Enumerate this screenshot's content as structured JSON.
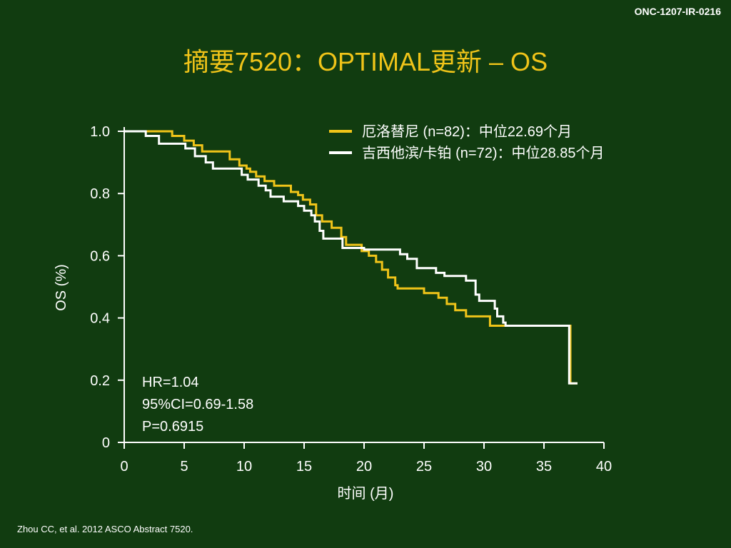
{
  "slide": {
    "code": "ONC-1207-IR-0216",
    "title": "摘要7520：OPTIMAL更新 – OS",
    "reference": "Zhou CC, et al. 2012 ASCO Abstract 7520."
  },
  "chart_data": {
    "type": "line",
    "xlabel": "时间 (月)",
    "ylabel": "OS (%)",
    "xlim": [
      0,
      40
    ],
    "ylim": [
      0,
      1.0
    ],
    "x_ticks": [
      "0",
      "5",
      "10",
      "15",
      "20",
      "25",
      "30",
      "35",
      "40"
    ],
    "y_ticks": [
      "0",
      "0.2",
      "0.4",
      "0.6",
      "0.8",
      "1.0"
    ],
    "legend_placement": "top-right",
    "series": [
      {
        "name": "厄洛替尼 (n=82)：中位22.69个月",
        "color": "#f0c419",
        "points": [
          [
            0,
            1.0
          ],
          [
            4,
            1.0
          ],
          [
            4,
            0.985
          ],
          [
            5,
            0.985
          ],
          [
            5,
            0.97
          ],
          [
            5.8,
            0.97
          ],
          [
            5.8,
            0.955
          ],
          [
            6.5,
            0.955
          ],
          [
            6.5,
            0.935
          ],
          [
            8.8,
            0.935
          ],
          [
            8.8,
            0.91
          ],
          [
            9.6,
            0.91
          ],
          [
            9.6,
            0.89
          ],
          [
            10.2,
            0.89
          ],
          [
            10.2,
            0.88
          ],
          [
            10.5,
            0.88
          ],
          [
            10.5,
            0.87
          ],
          [
            11,
            0.87
          ],
          [
            11,
            0.855
          ],
          [
            11.7,
            0.855
          ],
          [
            11.7,
            0.84
          ],
          [
            12.5,
            0.84
          ],
          [
            12.5,
            0.825
          ],
          [
            13.9,
            0.825
          ],
          [
            13.9,
            0.805
          ],
          [
            14.5,
            0.805
          ],
          [
            14.5,
            0.795
          ],
          [
            14.9,
            0.795
          ],
          [
            14.9,
            0.78
          ],
          [
            15.5,
            0.78
          ],
          [
            15.5,
            0.765
          ],
          [
            16,
            0.765
          ],
          [
            16,
            0.73
          ],
          [
            16.5,
            0.73
          ],
          [
            16.5,
            0.71
          ],
          [
            17.3,
            0.71
          ],
          [
            17.3,
            0.69
          ],
          [
            18.1,
            0.69
          ],
          [
            18.1,
            0.66
          ],
          [
            18.5,
            0.66
          ],
          [
            18.5,
            0.635
          ],
          [
            19.8,
            0.635
          ],
          [
            19.8,
            0.615
          ],
          [
            20.4,
            0.615
          ],
          [
            20.4,
            0.6
          ],
          [
            21,
            0.6
          ],
          [
            21,
            0.58
          ],
          [
            21.5,
            0.58
          ],
          [
            21.5,
            0.555
          ],
          [
            22,
            0.555
          ],
          [
            22,
            0.53
          ],
          [
            22.6,
            0.53
          ],
          [
            22.6,
            0.505
          ],
          [
            22.8,
            0.505
          ],
          [
            22.8,
            0.495
          ],
          [
            25,
            0.495
          ],
          [
            25,
            0.48
          ],
          [
            26.2,
            0.48
          ],
          [
            26.2,
            0.465
          ],
          [
            26.9,
            0.465
          ],
          [
            26.9,
            0.445
          ],
          [
            27.6,
            0.445
          ],
          [
            27.6,
            0.425
          ],
          [
            28.5,
            0.425
          ],
          [
            28.5,
            0.405
          ],
          [
            30.5,
            0.405
          ],
          [
            30.5,
            0.375
          ],
          [
            37.2,
            0.375
          ],
          [
            37.2,
            0.19
          ],
          [
            37.8,
            0.19
          ]
        ]
      },
      {
        "name": "吉西他滨/卡铂 (n=72)：中位28.85个月",
        "color": "#ffffff",
        "points": [
          [
            0,
            1.0
          ],
          [
            1.8,
            1.0
          ],
          [
            1.8,
            0.985
          ],
          [
            2.9,
            0.985
          ],
          [
            2.9,
            0.96
          ],
          [
            5.1,
            0.96
          ],
          [
            5.1,
            0.945
          ],
          [
            5.9,
            0.945
          ],
          [
            5.9,
            0.92
          ],
          [
            6.8,
            0.92
          ],
          [
            6.8,
            0.9
          ],
          [
            7.4,
            0.9
          ],
          [
            7.4,
            0.88
          ],
          [
            9.8,
            0.88
          ],
          [
            9.8,
            0.86
          ],
          [
            10.3,
            0.86
          ],
          [
            10.3,
            0.845
          ],
          [
            11.2,
            0.845
          ],
          [
            11.2,
            0.825
          ],
          [
            11.8,
            0.825
          ],
          [
            11.8,
            0.81
          ],
          [
            12.2,
            0.81
          ],
          [
            12.2,
            0.79
          ],
          [
            13.3,
            0.79
          ],
          [
            13.3,
            0.775
          ],
          [
            14.5,
            0.775
          ],
          [
            14.5,
            0.76
          ],
          [
            15,
            0.76
          ],
          [
            15,
            0.745
          ],
          [
            15.6,
            0.745
          ],
          [
            15.6,
            0.73
          ],
          [
            15.9,
            0.73
          ],
          [
            15.9,
            0.71
          ],
          [
            16.3,
            0.71
          ],
          [
            16.3,
            0.68
          ],
          [
            16.6,
            0.68
          ],
          [
            16.6,
            0.655
          ],
          [
            18.2,
            0.655
          ],
          [
            18.2,
            0.625
          ],
          [
            20,
            0.625
          ],
          [
            20,
            0.62
          ],
          [
            23,
            0.62
          ],
          [
            23,
            0.605
          ],
          [
            23.6,
            0.605
          ],
          [
            23.6,
            0.59
          ],
          [
            24.4,
            0.59
          ],
          [
            24.4,
            0.56
          ],
          [
            26,
            0.56
          ],
          [
            26,
            0.545
          ],
          [
            26.7,
            0.545
          ],
          [
            26.7,
            0.535
          ],
          [
            28.5,
            0.535
          ],
          [
            28.5,
            0.52
          ],
          [
            29.3,
            0.52
          ],
          [
            29.3,
            0.475
          ],
          [
            29.6,
            0.475
          ],
          [
            29.6,
            0.455
          ],
          [
            30.9,
            0.455
          ],
          [
            30.9,
            0.43
          ],
          [
            31.1,
            0.43
          ],
          [
            31.1,
            0.405
          ],
          [
            31.6,
            0.405
          ],
          [
            31.6,
            0.385
          ],
          [
            31.8,
            0.385
          ],
          [
            31.8,
            0.375
          ],
          [
            37.1,
            0.375
          ],
          [
            37.1,
            0.19
          ],
          [
            37.8,
            0.19
          ]
        ]
      }
    ],
    "annotations": [
      "HR=1.04",
      "95%CI=0.69-1.58",
      "P=0.6915"
    ]
  }
}
